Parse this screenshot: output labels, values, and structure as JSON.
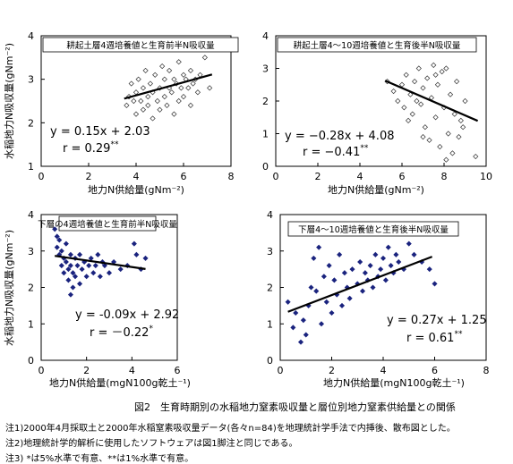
{
  "figure": {
    "caption": "図2　生育時期別の水稲地力窒素吸収量と層位別地力窒素供給量との関係",
    "notes": [
      "注1)2000年4月採取土と2000年水稲窒素吸収量データ(各々n=84)を地理統計学手法で内挿後、散布図とした。",
      "注2)地理統計学的解析に使用したソフトウェアは図1脚注と同じである。",
      "注3) *は5%水準で有意、**は1%水準で有意。"
    ]
  },
  "chart_data": [
    {
      "type": "scatter",
      "title": "耕起土層4週培養値と生育前半N吸収量",
      "xlabel": "地力N供給量(gNm⁻²)",
      "ylabel": "水稲地力N吸収量(gNm⁻²)",
      "xlim": [
        0,
        8
      ],
      "ylim": [
        1,
        4
      ],
      "xticks": [
        0,
        2,
        4,
        6,
        8
      ],
      "yticks": [
        1,
        2,
        3,
        4
      ],
      "marker": "open-diamond",
      "equation": "y = 0.15x + 2.03",
      "r_label": "r = 0.29",
      "r_sig": "**",
      "regression": {
        "slope": 0.15,
        "intercept": 2.03,
        "x_range": [
          3.5,
          7.2
        ]
      },
      "points": [
        [
          3.6,
          2.4
        ],
        [
          3.7,
          2.6
        ],
        [
          3.8,
          2.9
        ],
        [
          3.9,
          2.5
        ],
        [
          4.0,
          2.2
        ],
        [
          4.0,
          2.7
        ],
        [
          4.1,
          3.0
        ],
        [
          4.2,
          2.5
        ],
        [
          4.3,
          2.3
        ],
        [
          4.3,
          2.8
        ],
        [
          4.4,
          3.2
        ],
        [
          4.5,
          2.6
        ],
        [
          4.5,
          2.4
        ],
        [
          4.6,
          2.9
        ],
        [
          4.7,
          2.1
        ],
        [
          4.7,
          2.7
        ],
        [
          4.8,
          3.1
        ],
        [
          4.9,
          2.5
        ],
        [
          5.0,
          2.8
        ],
        [
          5.0,
          2.3
        ],
        [
          5.1,
          3.3
        ],
        [
          5.2,
          2.6
        ],
        [
          5.2,
          3.0
        ],
        [
          5.3,
          2.4
        ],
        [
          5.4,
          2.8
        ],
        [
          5.4,
          3.2
        ],
        [
          5.5,
          2.7
        ],
        [
          5.6,
          2.2
        ],
        [
          5.6,
          3.0
        ],
        [
          5.7,
          2.9
        ],
        [
          5.8,
          3.4
        ],
        [
          5.8,
          2.5
        ],
        [
          5.9,
          2.8
        ],
        [
          6.0,
          3.1
        ],
        [
          6.0,
          2.6
        ],
        [
          6.1,
          3.0
        ],
        [
          6.2,
          2.8
        ],
        [
          6.3,
          3.2
        ],
        [
          6.3,
          2.4
        ],
        [
          6.4,
          2.9
        ],
        [
          6.5,
          3.0
        ],
        [
          6.6,
          2.7
        ],
        [
          6.7,
          3.1
        ],
        [
          6.9,
          3.5
        ],
        [
          7.1,
          2.8
        ]
      ]
    },
    {
      "type": "scatter",
      "title": "耕起土層4～10週培養値と生育後半N吸収量",
      "xlabel": "地力N供給量(gNm⁻²)",
      "ylabel": "",
      "xlim": [
        0,
        10
      ],
      "ylim": [
        0,
        4
      ],
      "xticks": [
        0,
        2,
        4,
        6,
        8,
        10
      ],
      "yticks": [
        0,
        1,
        2,
        3,
        4
      ],
      "marker": "open-diamond",
      "equation": "y = −0.28x + 4.08",
      "r_label": "r = −0.41",
      "r_sig": "**",
      "regression": {
        "slope": -0.28,
        "intercept": 4.08,
        "x_range": [
          5.2,
          9.6
        ]
      },
      "points": [
        [
          5.3,
          2.6
        ],
        [
          5.6,
          2.3
        ],
        [
          5.8,
          2.0
        ],
        [
          6.0,
          2.5
        ],
        [
          6.1,
          1.8
        ],
        [
          6.2,
          2.8
        ],
        [
          6.4,
          2.2
        ],
        [
          6.5,
          1.6
        ],
        [
          6.6,
          2.6
        ],
        [
          6.8,
          3.0
        ],
        [
          6.9,
          1.9
        ],
        [
          7.0,
          2.4
        ],
        [
          7.1,
          1.2
        ],
        [
          7.2,
          2.7
        ],
        [
          7.3,
          0.8
        ],
        [
          7.4,
          2.1
        ],
        [
          7.5,
          3.1
        ],
        [
          7.6,
          1.5
        ],
        [
          7.7,
          2.5
        ],
        [
          7.8,
          0.6
        ],
        [
          7.9,
          2.9
        ],
        [
          8.0,
          1.8
        ],
        [
          8.1,
          3.0
        ],
        [
          8.2,
          1.0
        ],
        [
          8.3,
          2.2
        ],
        [
          8.4,
          0.4
        ],
        [
          8.5,
          1.6
        ],
        [
          8.6,
          2.6
        ],
        [
          8.7,
          0.9
        ],
        [
          8.8,
          1.4
        ],
        [
          9.0,
          2.0
        ],
        [
          9.5,
          0.3
        ],
        [
          6.3,
          1.4
        ],
        [
          7.0,
          0.9
        ],
        [
          7.6,
          2.8
        ],
        [
          8.1,
          0.2
        ],
        [
          8.9,
          1.2
        ],
        [
          6.7,
          2.0
        ]
      ]
    },
    {
      "type": "scatter",
      "title": "下層の4週培養値と生育前半N吸収量",
      "xlabel": "地力N供給量(mgN100g乾土⁻¹)",
      "ylabel": "水稲地力N吸収量(gNm⁻²)",
      "xlim": [
        0,
        6
      ],
      "ylim": [
        0,
        4
      ],
      "xticks": [
        0,
        2,
        4,
        6
      ],
      "yticks": [
        0,
        1,
        2,
        3,
        4
      ],
      "marker": "filled-diamond",
      "equation": "y = -0.09x + 2.92",
      "r_label": "r = －0.22",
      "r_sig": "*",
      "regression": {
        "slope": -0.09,
        "intercept": 2.92,
        "x_range": [
          0.6,
          4.6
        ]
      },
      "points": [
        [
          0.6,
          3.6
        ],
        [
          0.7,
          3.4
        ],
        [
          0.7,
          3.1
        ],
        [
          0.8,
          2.9
        ],
        [
          0.8,
          3.3
        ],
        [
          0.9,
          2.6
        ],
        [
          0.9,
          3.0
        ],
        [
          1.0,
          2.8
        ],
        [
          1.0,
          2.4
        ],
        [
          1.1,
          3.2
        ],
        [
          1.1,
          2.7
        ],
        [
          1.2,
          2.5
        ],
        [
          1.2,
          2.2
        ],
        [
          1.3,
          2.9
        ],
        [
          1.3,
          2.6
        ],
        [
          1.4,
          2.4
        ],
        [
          1.4,
          2.0
        ],
        [
          1.5,
          2.8
        ],
        [
          1.5,
          2.3
        ],
        [
          1.6,
          2.6
        ],
        [
          1.7,
          2.1
        ],
        [
          1.7,
          2.9
        ],
        [
          1.8,
          2.5
        ],
        [
          1.9,
          2.7
        ],
        [
          2.0,
          2.3
        ],
        [
          2.1,
          2.6
        ],
        [
          2.2,
          2.8
        ],
        [
          2.3,
          2.4
        ],
        [
          2.4,
          2.6
        ],
        [
          2.5,
          2.9
        ],
        [
          2.6,
          2.3
        ],
        [
          2.8,
          2.6
        ],
        [
          3.0,
          2.4
        ],
        [
          3.2,
          2.7
        ],
        [
          3.5,
          2.5
        ],
        [
          3.8,
          2.6
        ],
        [
          4.1,
          3.2
        ],
        [
          4.2,
          2.9
        ],
        [
          4.4,
          2.5
        ],
        [
          4.6,
          2.8
        ],
        [
          1.3,
          1.8
        ],
        [
          2.7,
          2.7
        ]
      ]
    },
    {
      "type": "scatter",
      "title": "下層4～10週培養値と生育後半N吸収量",
      "xlabel": "地力N供給量(mgN100g乾土⁻¹)",
      "ylabel": "",
      "xlim": [
        0,
        8
      ],
      "ylim": [
        0,
        4
      ],
      "xticks": [
        0,
        2,
        4,
        6,
        8
      ],
      "yticks": [
        0,
        1,
        2,
        3,
        4
      ],
      "marker": "filled-diamond",
      "equation": "y = 0.27x + 1.25",
      "r_label": "r = 0.61",
      "r_sig": "**",
      "regression": {
        "slope": 0.27,
        "intercept": 1.25,
        "x_range": [
          0.3,
          5.9
        ]
      },
      "points": [
        [
          0.3,
          1.6
        ],
        [
          0.5,
          0.9
        ],
        [
          0.6,
          1.3
        ],
        [
          0.8,
          0.5
        ],
        [
          0.9,
          1.1
        ],
        [
          1.0,
          0.7
        ],
        [
          1.1,
          1.5
        ],
        [
          1.2,
          2.0
        ],
        [
          1.3,
          2.8
        ],
        [
          1.4,
          1.9
        ],
        [
          1.5,
          3.1
        ],
        [
          1.6,
          1.0
        ],
        [
          1.7,
          2.3
        ],
        [
          1.8,
          1.6
        ],
        [
          1.9,
          2.6
        ],
        [
          2.0,
          1.3
        ],
        [
          2.1,
          2.2
        ],
        [
          2.2,
          1.8
        ],
        [
          2.3,
          2.9
        ],
        [
          2.4,
          1.5
        ],
        [
          2.5,
          2.4
        ],
        [
          2.6,
          2.0
        ],
        [
          2.7,
          1.7
        ],
        [
          2.8,
          2.5
        ],
        [
          3.0,
          2.1
        ],
        [
          3.1,
          2.7
        ],
        [
          3.2,
          1.9
        ],
        [
          3.3,
          2.4
        ],
        [
          3.4,
          2.2
        ],
        [
          3.5,
          2.6
        ],
        [
          3.6,
          2.0
        ],
        [
          3.7,
          2.9
        ],
        [
          3.8,
          2.3
        ],
        [
          3.9,
          2.5
        ],
        [
          4.0,
          2.8
        ],
        [
          4.1,
          2.2
        ],
        [
          4.2,
          3.1
        ],
        [
          4.3,
          2.6
        ],
        [
          4.4,
          2.4
        ],
        [
          4.5,
          2.9
        ],
        [
          4.6,
          2.7
        ],
        [
          4.8,
          2.5
        ],
        [
          5.0,
          3.2
        ],
        [
          5.2,
          2.9
        ],
        [
          5.5,
          2.7
        ],
        [
          5.8,
          2.5
        ],
        [
          6.0,
          2.1
        ]
      ]
    }
  ]
}
